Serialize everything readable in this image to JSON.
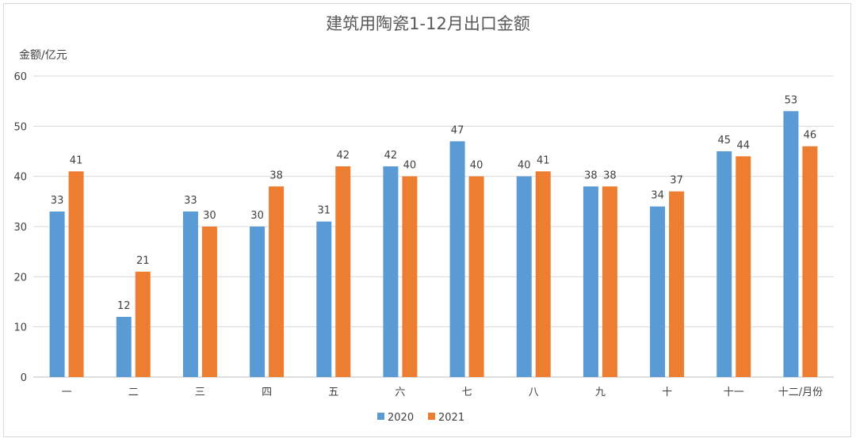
{
  "chart_data": {
    "type": "bar",
    "title": "建筑用陶瓷1-12月出口金额",
    "ylabel": "金额/亿元",
    "xlabel": "",
    "ylim": [
      0,
      60
    ],
    "yticks": [
      0,
      10,
      20,
      30,
      40,
      50,
      60
    ],
    "grid": true,
    "legend_position": "bottom",
    "categories": [
      "一",
      "二",
      "三",
      "四",
      "五",
      "六",
      "七",
      "八",
      "九",
      "十",
      "十一",
      "十二/月份"
    ],
    "series": [
      {
        "name": "2020",
        "color": "#5b9bd5",
        "values": [
          33,
          12,
          33,
          30,
          31,
          42,
          47,
          40,
          38,
          34,
          45,
          53
        ]
      },
      {
        "name": "2021",
        "color": "#ed7d31",
        "values": [
          41,
          21,
          30,
          38,
          42,
          40,
          40,
          41,
          38,
          37,
          44,
          46
        ]
      }
    ]
  }
}
